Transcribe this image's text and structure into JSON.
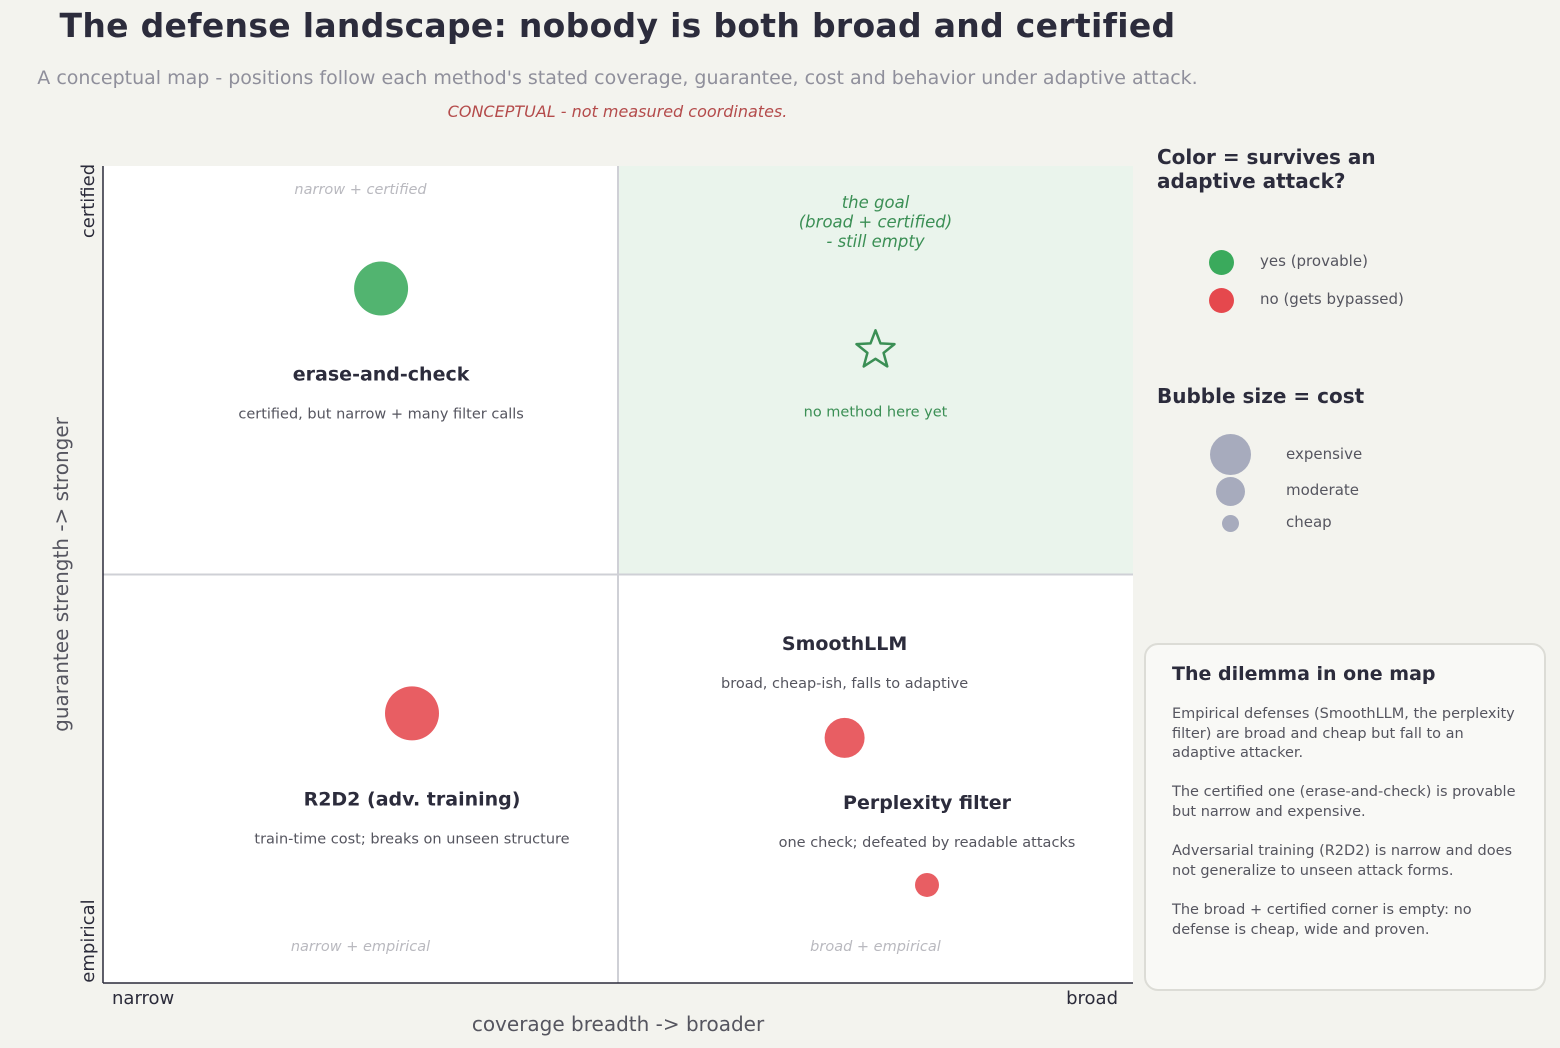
{
  "header": {
    "title": "The defense landscape: nobody is both broad and certified",
    "subtitle": "A conceptual map - positions follow each method's stated coverage, guarantee, cost and behavior under adaptive attack.",
    "warning": "CONCEPTUAL - not measured coordinates."
  },
  "colors": {
    "survives": "#3aaa5c",
    "bypassed": "#e5484d",
    "cost_legend": "#a7abbd",
    "goal_fill": "#eaf4ec",
    "goal_text": "#3b8f55"
  },
  "chart_data": {
    "type": "scatter",
    "xlabel": "coverage breadth  ->  broader",
    "ylabel": "guarantee strength  ->  stronger",
    "x_ticks": [
      "narrow",
      "broad"
    ],
    "y_ticks": [
      "empirical",
      "certified"
    ],
    "xlim": [
      0,
      1
    ],
    "ylim": [
      0,
      1
    ],
    "grid": false,
    "quadrant_divider": {
      "x": 0.5,
      "y": 0.5
    },
    "quadrant_labels": {
      "top_left": "narrow + certified",
      "bottom_left": "narrow + empirical",
      "bottom_right": "broad + empirical"
    },
    "goal_quadrant": {
      "label_lines": [
        "the goal",
        "(broad + certified)",
        "- still empty"
      ],
      "marker": "star",
      "x": 0.75,
      "y": 0.75,
      "note": "no method here yet"
    },
    "points": [
      {
        "name": "erase-and-check",
        "desc": "certified, but narrow + many filter calls",
        "x": 0.27,
        "y": 0.85,
        "cost": "expensive",
        "survives": true
      },
      {
        "name": "R2D2 (adv. training)",
        "desc": "train-time cost; breaks on unseen structure",
        "x": 0.3,
        "y": 0.33,
        "cost": "expensive",
        "survives": false
      },
      {
        "name": "SmoothLLM",
        "desc": "broad, cheap-ish, falls to adaptive",
        "x": 0.72,
        "y": 0.3,
        "cost": "moderate",
        "survives": false
      },
      {
        "name": "Perplexity filter",
        "desc": "one check; defeated by readable attacks",
        "x": 0.8,
        "y": 0.12,
        "cost": "cheap",
        "survives": false
      }
    ]
  },
  "legend": {
    "color_title": "Color = survives an adaptive attack?",
    "color_items": [
      {
        "label": "yes (provable)",
        "color": "#3aaa5c"
      },
      {
        "label": "no (gets bypassed)",
        "color": "#e5484d"
      }
    ],
    "size_title": "Bubble size = cost",
    "size_items": [
      "expensive",
      "moderate",
      "cheap"
    ]
  },
  "dilemma": {
    "title": "The dilemma in one map",
    "paragraphs": [
      "Empirical defenses (SmoothLLM, the perplexity filter) are broad and cheap but fall to an adaptive attacker.",
      "The certified one (erase-and-check) is provable but narrow and expensive.",
      "Adversarial training (R2D2) is narrow and does not generalize to unseen attack forms.",
      "The broad + certified corner is empty: no defense is cheap, wide and proven."
    ]
  }
}
